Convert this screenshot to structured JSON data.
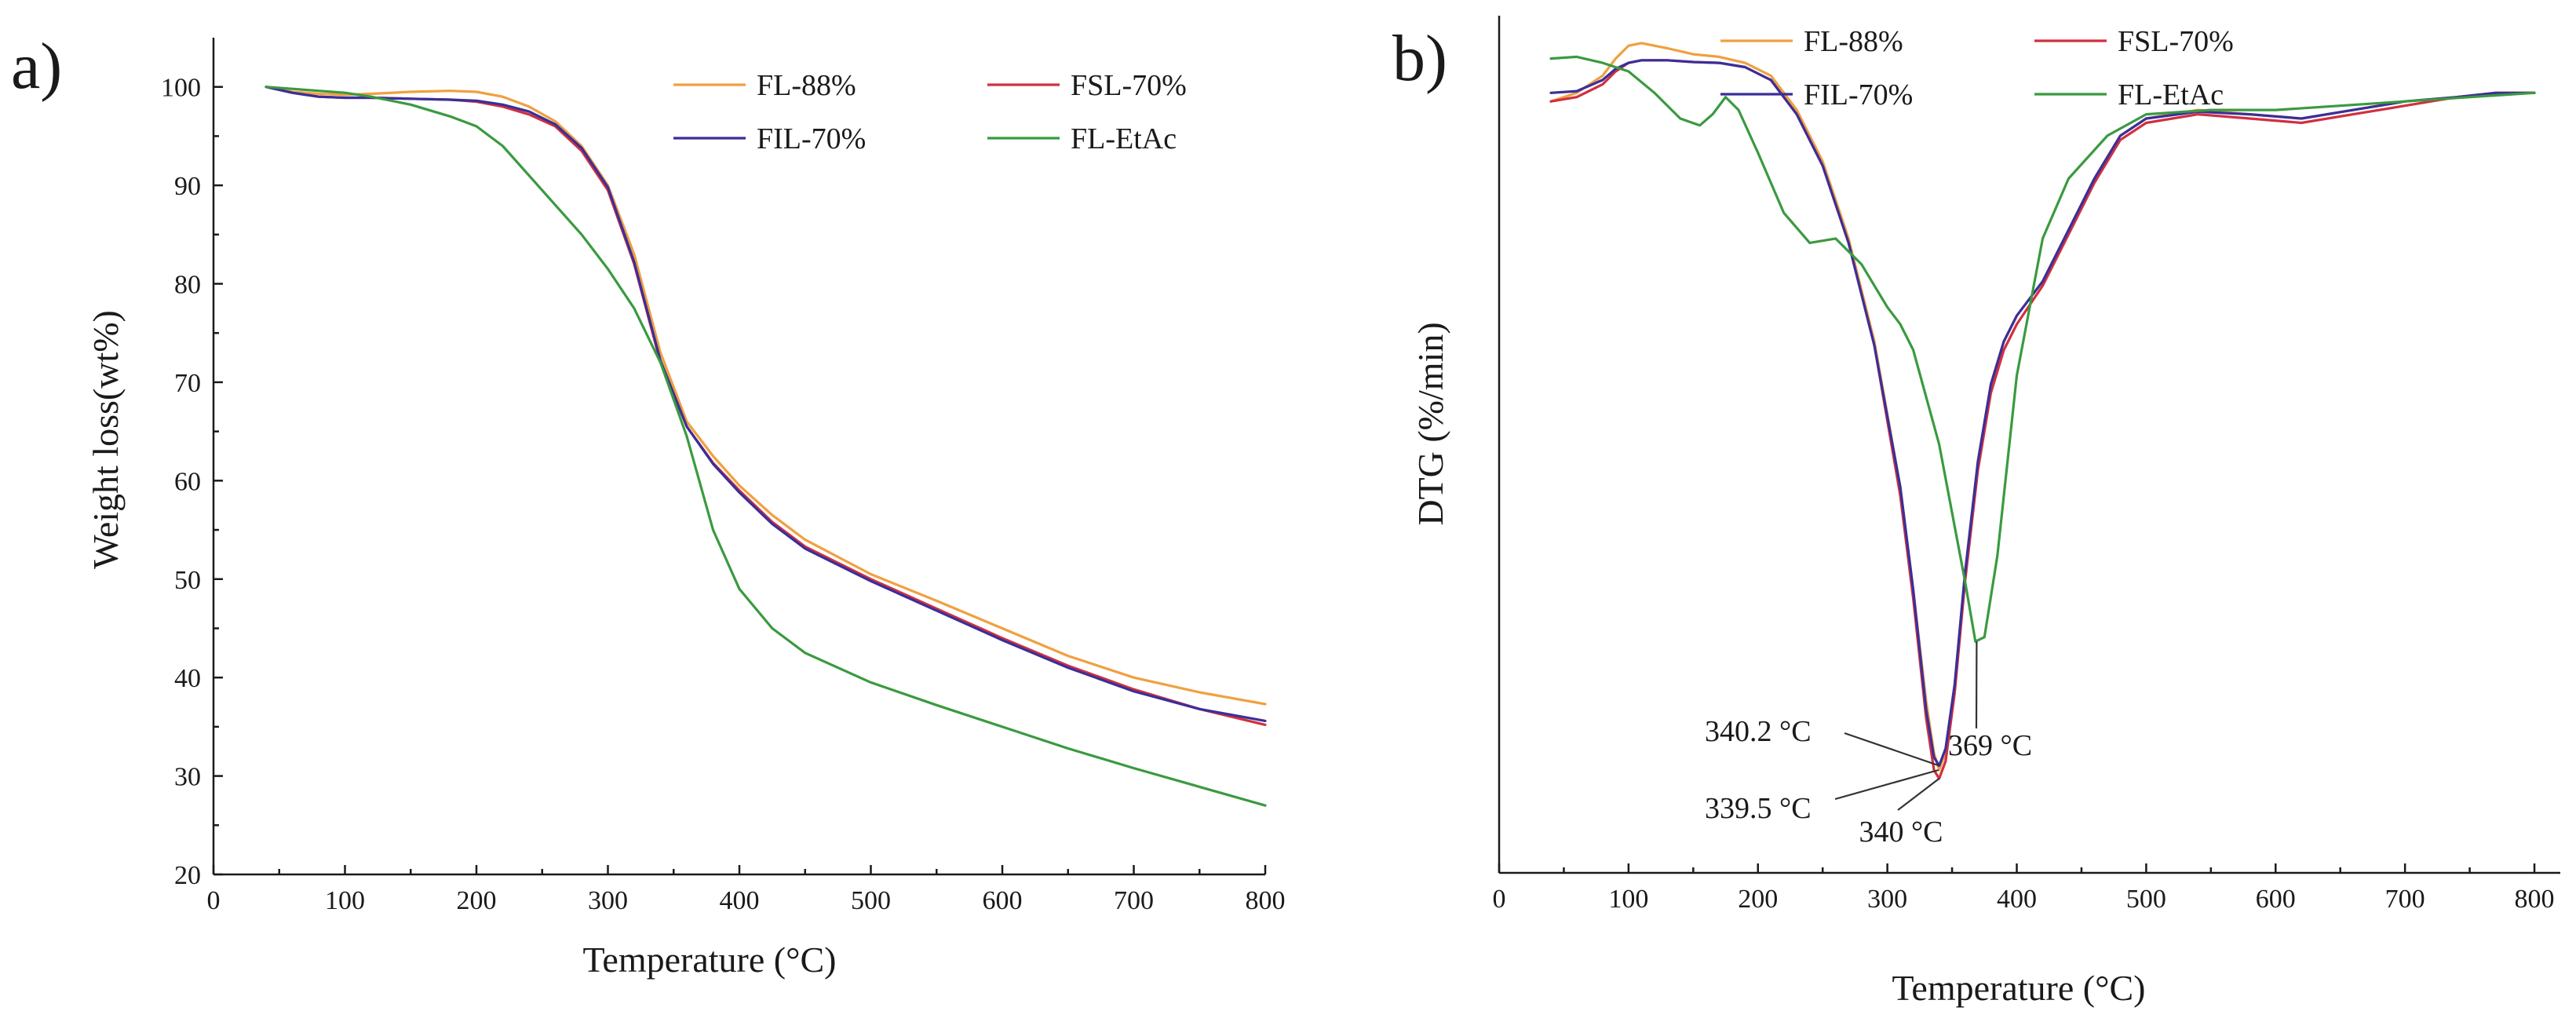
{
  "chart_data": [
    {
      "type": "line",
      "panel_label": "a)",
      "xlabel": "Temperature (°C)",
      "ylabel": "Weight loss(wt%)",
      "xlim": [
        0,
        800
      ],
      "ylim": [
        20,
        105
      ],
      "xticks": [
        0,
        100,
        200,
        300,
        400,
        500,
        600,
        700,
        800
      ],
      "yticks": [
        20,
        30,
        40,
        50,
        60,
        70,
        80,
        90,
        100
      ],
      "legend": "top-right, two columns",
      "series": [
        {
          "name": "FL-88%",
          "color": "#f0a040",
          "x": [
            40,
            60,
            80,
            100,
            120,
            150,
            180,
            200,
            220,
            240,
            260,
            280,
            300,
            320,
            340,
            360,
            380,
            400,
            425,
            450,
            500,
            550,
            600,
            650,
            700,
            750,
            800
          ],
          "y": [
            100,
            99.5,
            99.3,
            99.2,
            99.3,
            99.5,
            99.6,
            99.5,
            99.0,
            98.0,
            96.5,
            94.0,
            90.0,
            83.0,
            73.0,
            66.0,
            62.5,
            59.5,
            56.5,
            54.0,
            50.5,
            47.8,
            45.0,
            42.2,
            40.0,
            38.5,
            37.3
          ]
        },
        {
          "name": "FSL-70%",
          "color": "#d03040",
          "x": [
            40,
            60,
            80,
            100,
            120,
            150,
            180,
            200,
            220,
            240,
            260,
            280,
            300,
            320,
            340,
            360,
            380,
            400,
            425,
            450,
            500,
            550,
            600,
            650,
            700,
            750,
            800
          ],
          "y": [
            100,
            99.4,
            99.0,
            98.9,
            98.9,
            98.8,
            98.7,
            98.5,
            98.0,
            97.2,
            96.0,
            93.5,
            89.5,
            82.0,
            72.0,
            65.5,
            61.8,
            59.0,
            55.8,
            53.3,
            50.0,
            47.0,
            44.0,
            41.2,
            38.8,
            36.8,
            35.2
          ]
        },
        {
          "name": "FIL-70%",
          "color": "#3a2f99",
          "x": [
            40,
            60,
            80,
            100,
            120,
            150,
            180,
            200,
            220,
            240,
            260,
            280,
            300,
            320,
            340,
            360,
            380,
            400,
            425,
            450,
            500,
            550,
            600,
            650,
            700,
            750,
            800
          ],
          "y": [
            100,
            99.4,
            99.0,
            98.9,
            98.9,
            98.8,
            98.7,
            98.6,
            98.2,
            97.5,
            96.2,
            93.8,
            89.8,
            82.2,
            72.2,
            65.5,
            61.7,
            58.8,
            55.6,
            53.1,
            49.8,
            46.8,
            43.8,
            41.0,
            38.6,
            36.8,
            35.6
          ]
        },
        {
          "name": "FL-EtAc",
          "color": "#3a9a40",
          "x": [
            40,
            60,
            80,
            100,
            120,
            150,
            180,
            200,
            220,
            240,
            260,
            280,
            300,
            320,
            340,
            360,
            380,
            400,
            425,
            450,
            500,
            550,
            600,
            650,
            700,
            750,
            800
          ],
          "y": [
            100,
            99.8,
            99.6,
            99.4,
            99.0,
            98.2,
            97.0,
            96.0,
            94.0,
            91.0,
            88.0,
            85.0,
            81.5,
            77.5,
            72.0,
            64.5,
            55.0,
            49.0,
            45.0,
            42.5,
            39.5,
            37.2,
            35.0,
            32.8,
            30.8,
            28.9,
            27.0
          ]
        }
      ]
    },
    {
      "type": "line",
      "panel_label": "b)",
      "xlabel": "Temperature (°C)",
      "ylabel": "DTG (%/min)",
      "xlim": [
        0,
        820
      ],
      "ylim": [
        0,
        100
      ],
      "xticks": [
        0,
        100,
        200,
        300,
        400,
        500,
        600,
        700,
        800
      ],
      "yticks": [],
      "legend": "top, two columns",
      "series": [
        {
          "name": "FL-88%",
          "color": "#f0a040",
          "x": [
            40,
            60,
            80,
            90,
            100,
            110,
            130,
            150,
            170,
            190,
            210,
            230,
            250,
            270,
            290,
            310,
            320,
            330,
            336,
            340,
            345,
            352,
            360,
            370,
            380,
            390,
            400,
            420,
            440,
            460,
            480,
            500,
            540,
            580,
            620,
            660,
            700,
            740,
            770,
            800
          ],
          "y": [
            90,
            91,
            93,
            95,
            96.5,
            96.8,
            96.2,
            95.5,
            95.2,
            94.5,
            93,
            89,
            83,
            74,
            62,
            45,
            33,
            20,
            14,
            12,
            14,
            22,
            35,
            48,
            57,
            62,
            65,
            69,
            75,
            81,
            86,
            88,
            89,
            88.5,
            88,
            89,
            90,
            90.5,
            91,
            91
          ]
        },
        {
          "name": "FSL-70%",
          "color": "#d03040",
          "x": [
            40,
            60,
            80,
            90,
            100,
            110,
            130,
            150,
            170,
            190,
            210,
            230,
            250,
            270,
            290,
            310,
            320,
            330,
            336,
            340,
            345,
            352,
            360,
            370,
            380,
            390,
            400,
            420,
            440,
            460,
            480,
            500,
            540,
            580,
            620,
            660,
            700,
            740,
            770,
            800
          ],
          "y": [
            90,
            90.5,
            92,
            93.5,
            94.5,
            94.8,
            94.8,
            94.6,
            94.5,
            94.0,
            92.5,
            88.5,
            82.5,
            73.5,
            61.5,
            44,
            32,
            18,
            12,
            11,
            13,
            21,
            34,
            47,
            56,
            61,
            64,
            68.5,
            74.5,
            80.5,
            85.5,
            87.5,
            88.5,
            88,
            87.5,
            88.5,
            89.5,
            90.5,
            91,
            91
          ]
        },
        {
          "name": "FIL-70%",
          "color": "#3a2f99",
          "x": [
            40,
            60,
            80,
            90,
            100,
            110,
            130,
            150,
            170,
            190,
            210,
            230,
            250,
            270,
            290,
            310,
            320,
            330,
            336,
            340,
            345,
            352,
            360,
            370,
            380,
            390,
            400,
            420,
            440,
            460,
            480,
            500,
            540,
            580,
            620,
            660,
            700,
            740,
            770,
            800
          ],
          "y": [
            91,
            91.2,
            92.5,
            93.8,
            94.5,
            94.8,
            94.8,
            94.6,
            94.5,
            94.0,
            92.5,
            88.5,
            82.5,
            73.5,
            61.5,
            45,
            33,
            19,
            13.5,
            12.5,
            14.5,
            22,
            35,
            48,
            57,
            62,
            65,
            69,
            75,
            81,
            86,
            88,
            88.8,
            88.5,
            88,
            89,
            90,
            90.5,
            91,
            91
          ]
        },
        {
          "name": "FL-EtAc",
          "color": "#3a9a40",
          "x": [
            40,
            60,
            80,
            100,
            120,
            140,
            155,
            165,
            175,
            185,
            200,
            220,
            240,
            260,
            280,
            300,
            310,
            320,
            340,
            360,
            368,
            375,
            385,
            400,
            420,
            440,
            470,
            500,
            550,
            600,
            650,
            700,
            750,
            800
          ],
          "y": [
            95,
            95.2,
            94.5,
            93.5,
            91,
            88,
            87.2,
            88.5,
            90.5,
            89,
            84,
            77,
            73.5,
            74,
            71,
            66,
            64,
            61,
            50,
            34,
            27,
            27.5,
            37,
            58,
            74,
            81,
            86,
            88.5,
            89,
            89,
            89.5,
            90,
            90.5,
            91
          ]
        }
      ],
      "annotations": [
        {
          "text": "340.2 °C",
          "x": 340.2
        },
        {
          "text": "339.5 °C",
          "x": 339.5
        },
        {
          "text": "340 °C",
          "x": 340
        },
        {
          "text": "369 °C",
          "x": 369
        }
      ]
    }
  ]
}
